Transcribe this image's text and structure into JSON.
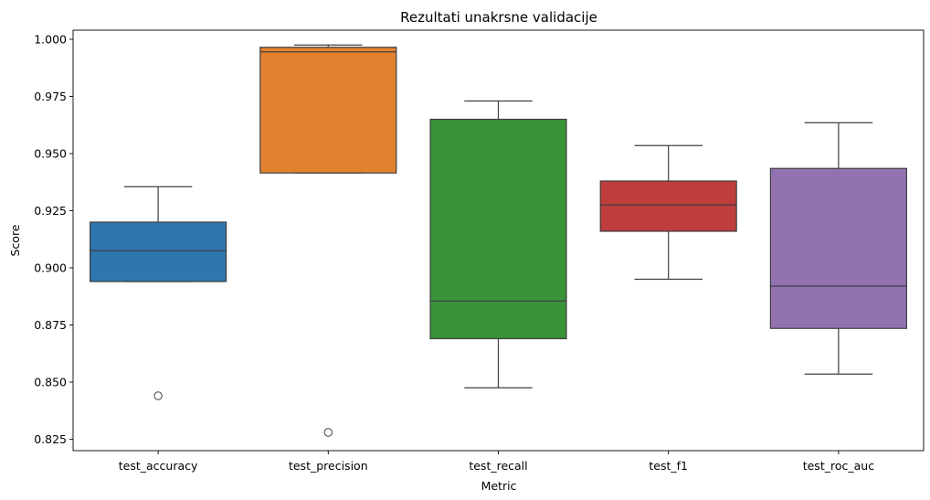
{
  "chart_data": {
    "type": "box",
    "title": "Rezultati unakrsne validacije",
    "xlabel": "Metric",
    "ylabel": "Score",
    "ylim": [
      0.82,
      1.004
    ],
    "yticks": [
      0.825,
      0.85,
      0.875,
      0.9,
      0.925,
      0.95,
      0.975,
      1.0
    ],
    "ytick_labels": [
      "0.825",
      "0.850",
      "0.875",
      "0.900",
      "0.925",
      "0.950",
      "0.975",
      "1.000"
    ],
    "grid": false,
    "categories": [
      "test_accuracy",
      "test_precision",
      "test_recall",
      "test_f1",
      "test_roc_auc"
    ],
    "boxes": [
      {
        "category": "test_accuracy",
        "whisker_low": 0.894,
        "q1": 0.894,
        "median": 0.9075,
        "q3": 0.92,
        "whisker_high": 0.9355,
        "outliers": [
          0.844
        ],
        "color": "#2f76ad"
      },
      {
        "category": "test_precision",
        "whisker_low": 0.9415,
        "q1": 0.9415,
        "median": 0.9945,
        "q3": 0.9965,
        "whisker_high": 0.9975,
        "outliers": [
          0.828
        ],
        "color": "#e2812e"
      },
      {
        "category": "test_recall",
        "whisker_low": 0.8475,
        "q1": 0.869,
        "median": 0.8855,
        "q3": 0.965,
        "whisker_high": 0.973,
        "outliers": [],
        "color": "#3a923a"
      },
      {
        "category": "test_f1",
        "whisker_low": 0.895,
        "q1": 0.916,
        "median": 0.9275,
        "q3": 0.938,
        "whisker_high": 0.9535,
        "outliers": [],
        "color": "#c03d3e"
      },
      {
        "category": "test_roc_auc",
        "whisker_low": 0.8535,
        "q1": 0.8735,
        "median": 0.892,
        "q3": 0.9435,
        "whisker_high": 0.9635,
        "outliers": [],
        "color": "#9372b2"
      }
    ]
  }
}
